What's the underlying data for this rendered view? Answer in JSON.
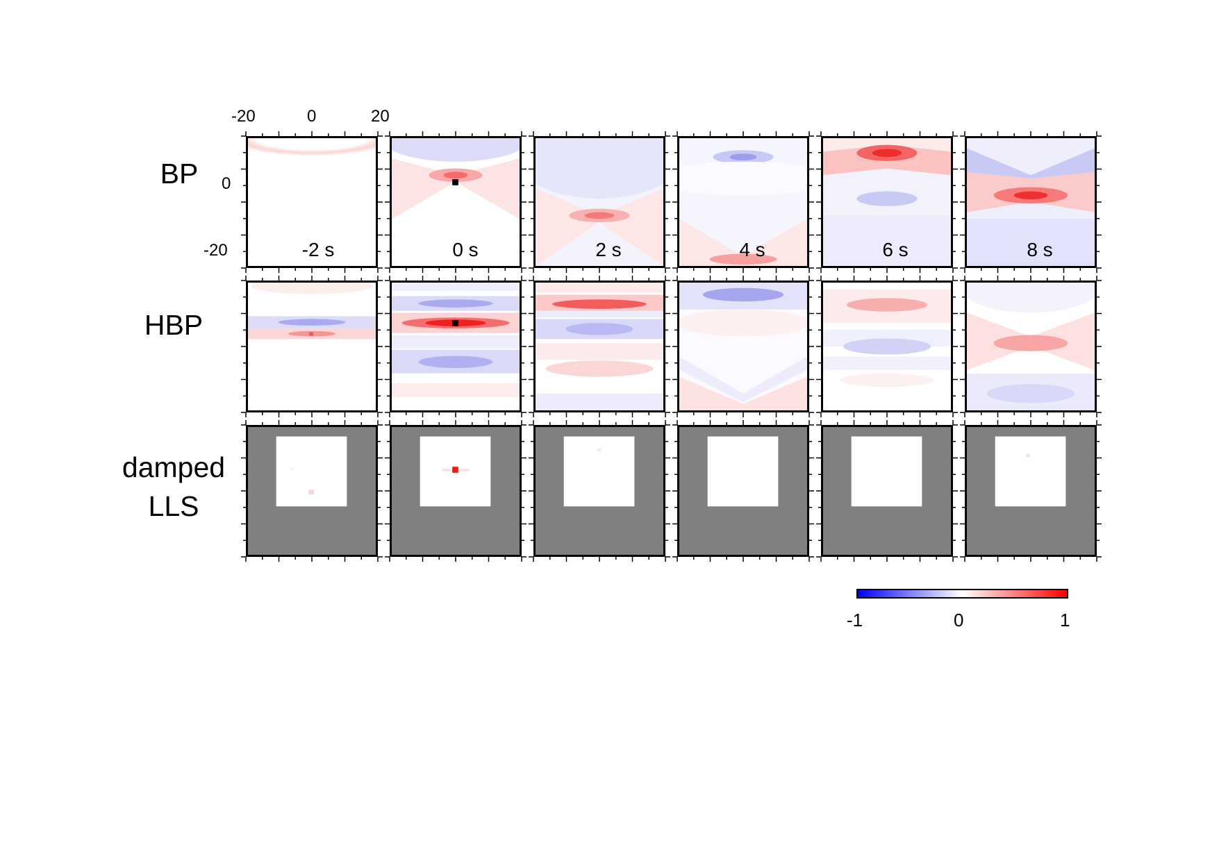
{
  "row_labels": {
    "bp": "BP",
    "hbp": "HBP",
    "lls_line1": "damped",
    "lls_line2": "LLS"
  },
  "x_axis_ticks": [
    "-20",
    "0",
    "20"
  ],
  "y_axis_ticks": [
    "0",
    "-20"
  ],
  "time_labels": [
    "-2 s",
    "0 s",
    "2 s",
    "4 s",
    "6 s",
    "8 s"
  ],
  "colorbar": {
    "labels": [
      "-1",
      "0",
      "1"
    ],
    "colors": {
      "min": "#0000ff",
      "mid": "#ffffff",
      "max": "#ff0000"
    }
  },
  "colors": {
    "masked_area": "#808080",
    "source_marker": "#000000",
    "frame": "#000000"
  }
}
